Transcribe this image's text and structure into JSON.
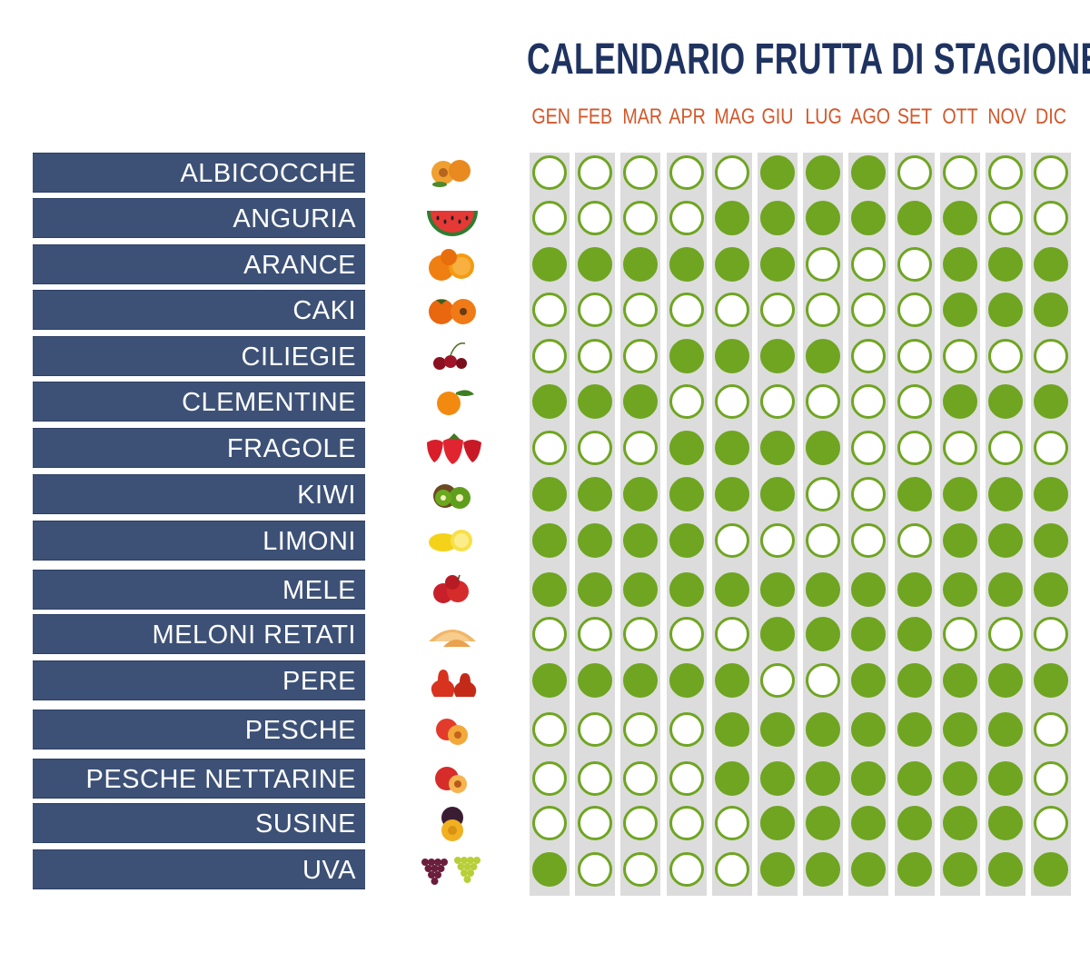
{
  "chart_data": {
    "type": "table",
    "title": "CALENDARIO FRUTTA DI STAGIONE",
    "months": [
      "GEN",
      "FEB",
      "MAR",
      "APR",
      "MAG",
      "GIU",
      "LUG",
      "AGO",
      "SET",
      "OTT",
      "NOV",
      "DIC"
    ],
    "rows": [
      {
        "name": "ALBICOCCHE",
        "icon": "apricot-icon",
        "season": [
          0,
          0,
          0,
          0,
          0,
          1,
          1,
          1,
          0,
          0,
          0,
          0
        ]
      },
      {
        "name": "ANGURIA",
        "icon": "watermelon-icon",
        "season": [
          0,
          0,
          0,
          0,
          1,
          1,
          1,
          1,
          1,
          1,
          0,
          0
        ]
      },
      {
        "name": "ARANCE",
        "icon": "orange-icon",
        "season": [
          1,
          1,
          1,
          1,
          1,
          1,
          0,
          0,
          0,
          1,
          1,
          1
        ]
      },
      {
        "name": "CAKI",
        "icon": "persimmon-icon",
        "season": [
          0,
          0,
          0,
          0,
          0,
          0,
          0,
          0,
          0,
          1,
          1,
          1
        ]
      },
      {
        "name": "CILIEGIE",
        "icon": "cherry-icon",
        "season": [
          0,
          0,
          0,
          1,
          1,
          1,
          1,
          0,
          0,
          0,
          0,
          0
        ]
      },
      {
        "name": "CLEMENTINE",
        "icon": "clementine-icon",
        "season": [
          1,
          1,
          1,
          0,
          0,
          0,
          0,
          0,
          0,
          1,
          1,
          1
        ]
      },
      {
        "name": "FRAGOLE",
        "icon": "strawberry-icon",
        "season": [
          0,
          0,
          0,
          1,
          1,
          1,
          1,
          0,
          0,
          0,
          0,
          0
        ]
      },
      {
        "name": "KIWI",
        "icon": "kiwi-icon",
        "season": [
          1,
          1,
          1,
          1,
          1,
          1,
          0,
          0,
          1,
          1,
          1,
          1
        ]
      },
      {
        "name": "LIMONI",
        "icon": "lemon-icon",
        "season": [
          1,
          1,
          1,
          1,
          0,
          0,
          0,
          0,
          0,
          1,
          1,
          1
        ]
      },
      {
        "name": "MELE",
        "icon": "apple-icon",
        "season": [
          1,
          1,
          1,
          1,
          1,
          1,
          1,
          1,
          1,
          1,
          1,
          1
        ]
      },
      {
        "name": "MELONI RETATI",
        "icon": "melon-icon",
        "season": [
          0,
          0,
          0,
          0,
          0,
          1,
          1,
          1,
          1,
          0,
          0,
          0
        ]
      },
      {
        "name": "PERE",
        "icon": "pear-icon",
        "season": [
          1,
          1,
          1,
          1,
          1,
          0,
          0,
          1,
          1,
          1,
          1,
          1
        ]
      },
      {
        "name": "PESCHE",
        "icon": "peach-icon",
        "season": [
          0,
          0,
          0,
          0,
          1,
          1,
          1,
          1,
          1,
          1,
          1,
          0
        ]
      },
      {
        "name": "PESCHE NETTARINE",
        "icon": "nectarine-icon",
        "season": [
          0,
          0,
          0,
          0,
          1,
          1,
          1,
          1,
          1,
          1,
          1,
          0
        ]
      },
      {
        "name": "SUSINE",
        "icon": "plum-icon",
        "season": [
          0,
          0,
          0,
          0,
          0,
          1,
          1,
          1,
          1,
          1,
          1,
          0
        ]
      },
      {
        "name": "UVA",
        "icon": "grape-icon",
        "season": [
          1,
          0,
          0,
          0,
          0,
          1,
          1,
          1,
          1,
          1,
          1,
          1
        ]
      }
    ]
  },
  "colors": {
    "title": "#1f3361",
    "months": "#d2572a",
    "label_bg": "#3d5177",
    "in_season": "#6fa521",
    "column_bg": "#dcdcdc"
  }
}
